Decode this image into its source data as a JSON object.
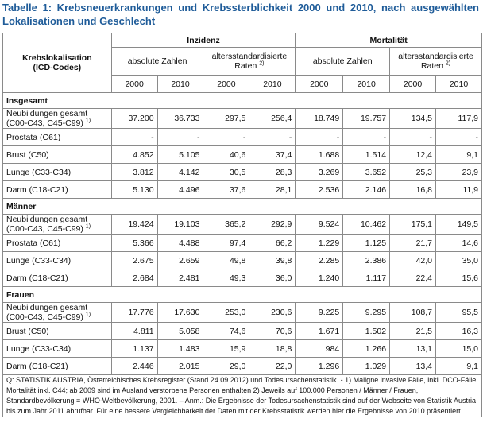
{
  "title": "Tabelle 1: Krebsneuerkrankungen und Krebssterblichkeit 2000 und 2010, nach ausgewählten Lokalisationen und Geschlecht",
  "headers": {
    "lokalisation_line1": "Krebslokalisation",
    "lokalisation_line2": "(ICD-Codes)",
    "inzidenz": "Inzidenz",
    "mortalitaet": "Mortalität",
    "absolute": "absolute Zahlen",
    "rates_line1": "altersstandardisierte",
    "rates_line2": "Raten",
    "rates_sup": "2)",
    "years": [
      "2000",
      "2010",
      "2000",
      "2010",
      "2000",
      "2010",
      "2000",
      "2010"
    ]
  },
  "sections": [
    {
      "name": "Insgesamt",
      "rows": [
        {
          "label1": "Neubildungen gesamt",
          "label2": "(C00-C43, C45-C99)",
          "sup": "1)",
          "values": [
            "37.200",
            "36.733",
            "297,5",
            "256,4",
            "18.749",
            "19.757",
            "134,5",
            "117,9"
          ]
        },
        {
          "label1": "Prostata (C61)",
          "values": [
            "-",
            "-",
            "-",
            "-",
            "-",
            "-",
            "-",
            "-"
          ]
        },
        {
          "label1": "Brust (C50)",
          "values": [
            "4.852",
            "5.105",
            "40,6",
            "37,4",
            "1.688",
            "1.514",
            "12,4",
            "9,1"
          ]
        },
        {
          "label1": "Lunge (C33-C34)",
          "values": [
            "3.812",
            "4.142",
            "30,5",
            "28,3",
            "3.269",
            "3.652",
            "25,3",
            "23,9"
          ]
        },
        {
          "label1": "Darm (C18-C21)",
          "values": [
            "5.130",
            "4.496",
            "37,6",
            "28,1",
            "2.536",
            "2.146",
            "16,8",
            "11,9"
          ]
        }
      ]
    },
    {
      "name": "Männer",
      "rows": [
        {
          "label1": "Neubildungen gesamt",
          "label2": "(C00-C43, C45-C99)",
          "sup": "1)",
          "values": [
            "19.424",
            "19.103",
            "365,2",
            "292,9",
            "9.524",
            "10.462",
            "175,1",
            "149,5"
          ]
        },
        {
          "label1": "Prostata (C61)",
          "values": [
            "5.366",
            "4.488",
            "97,4",
            "66,2",
            "1.229",
            "1.125",
            "21,7",
            "14,6"
          ]
        },
        {
          "label1": "Lunge (C33-C34)",
          "values": [
            "2.675",
            "2.659",
            "49,8",
            "39,8",
            "2.285",
            "2.386",
            "42,0",
            "35,0"
          ]
        },
        {
          "label1": "Darm (C18-C21)",
          "values": [
            "2.684",
            "2.481",
            "49,3",
            "36,0",
            "1.240",
            "1.117",
            "22,4",
            "15,6"
          ]
        }
      ]
    },
    {
      "name": "Frauen",
      "rows": [
        {
          "label1": "Neubildungen gesamt",
          "label2": "(C00-C43, C45-C99)",
          "sup": "1)",
          "values": [
            "17.776",
            "17.630",
            "253,0",
            "230,6",
            "9.225",
            "9.295",
            "108,7",
            "95,5"
          ]
        },
        {
          "label1": "Brust (C50)",
          "values": [
            "4.811",
            "5.058",
            "74,6",
            "70,6",
            "1.671",
            "1.502",
            "21,5",
            "16,3"
          ]
        },
        {
          "label1": "Lunge (C33-C34)",
          "values": [
            "1.137",
            "1.483",
            "15,9",
            "18,8",
            "984",
            "1.266",
            "13,1",
            "15,0"
          ]
        },
        {
          "label1": "Darm (C18-C21)",
          "values": [
            "2.446",
            "2.015",
            "29,0",
            "22,0",
            "1.296",
            "1.029",
            "13,4",
            "9,1"
          ]
        }
      ]
    }
  ],
  "footnote": "Q: STATISTIK AUSTRIA, Österreichisches Krebsregister (Stand 24.09.2012) und Todesursachenstatistik. - 1) Maligne invasive Fälle, inkl. DCO-Fälle; Mortalität inkl. C44; ab 2009 sind im Ausland verstorbene Personen enthalten 2) Jeweils auf 100.000 Personen / Männer / Frauen, Standardbevölkerung = WHO-Weltbevölkerung, 2001. – Anm.: Die Ergebnisse der Todesursachenstatistik sind auf der Webseite von Statistik Austria bis zum Jahr 2011 abrufbar. Für eine bessere Vergleichbarkeit der Daten mit der Krebsstatistik werden hier die Ergebnisse von 2010 präsentiert."
}
